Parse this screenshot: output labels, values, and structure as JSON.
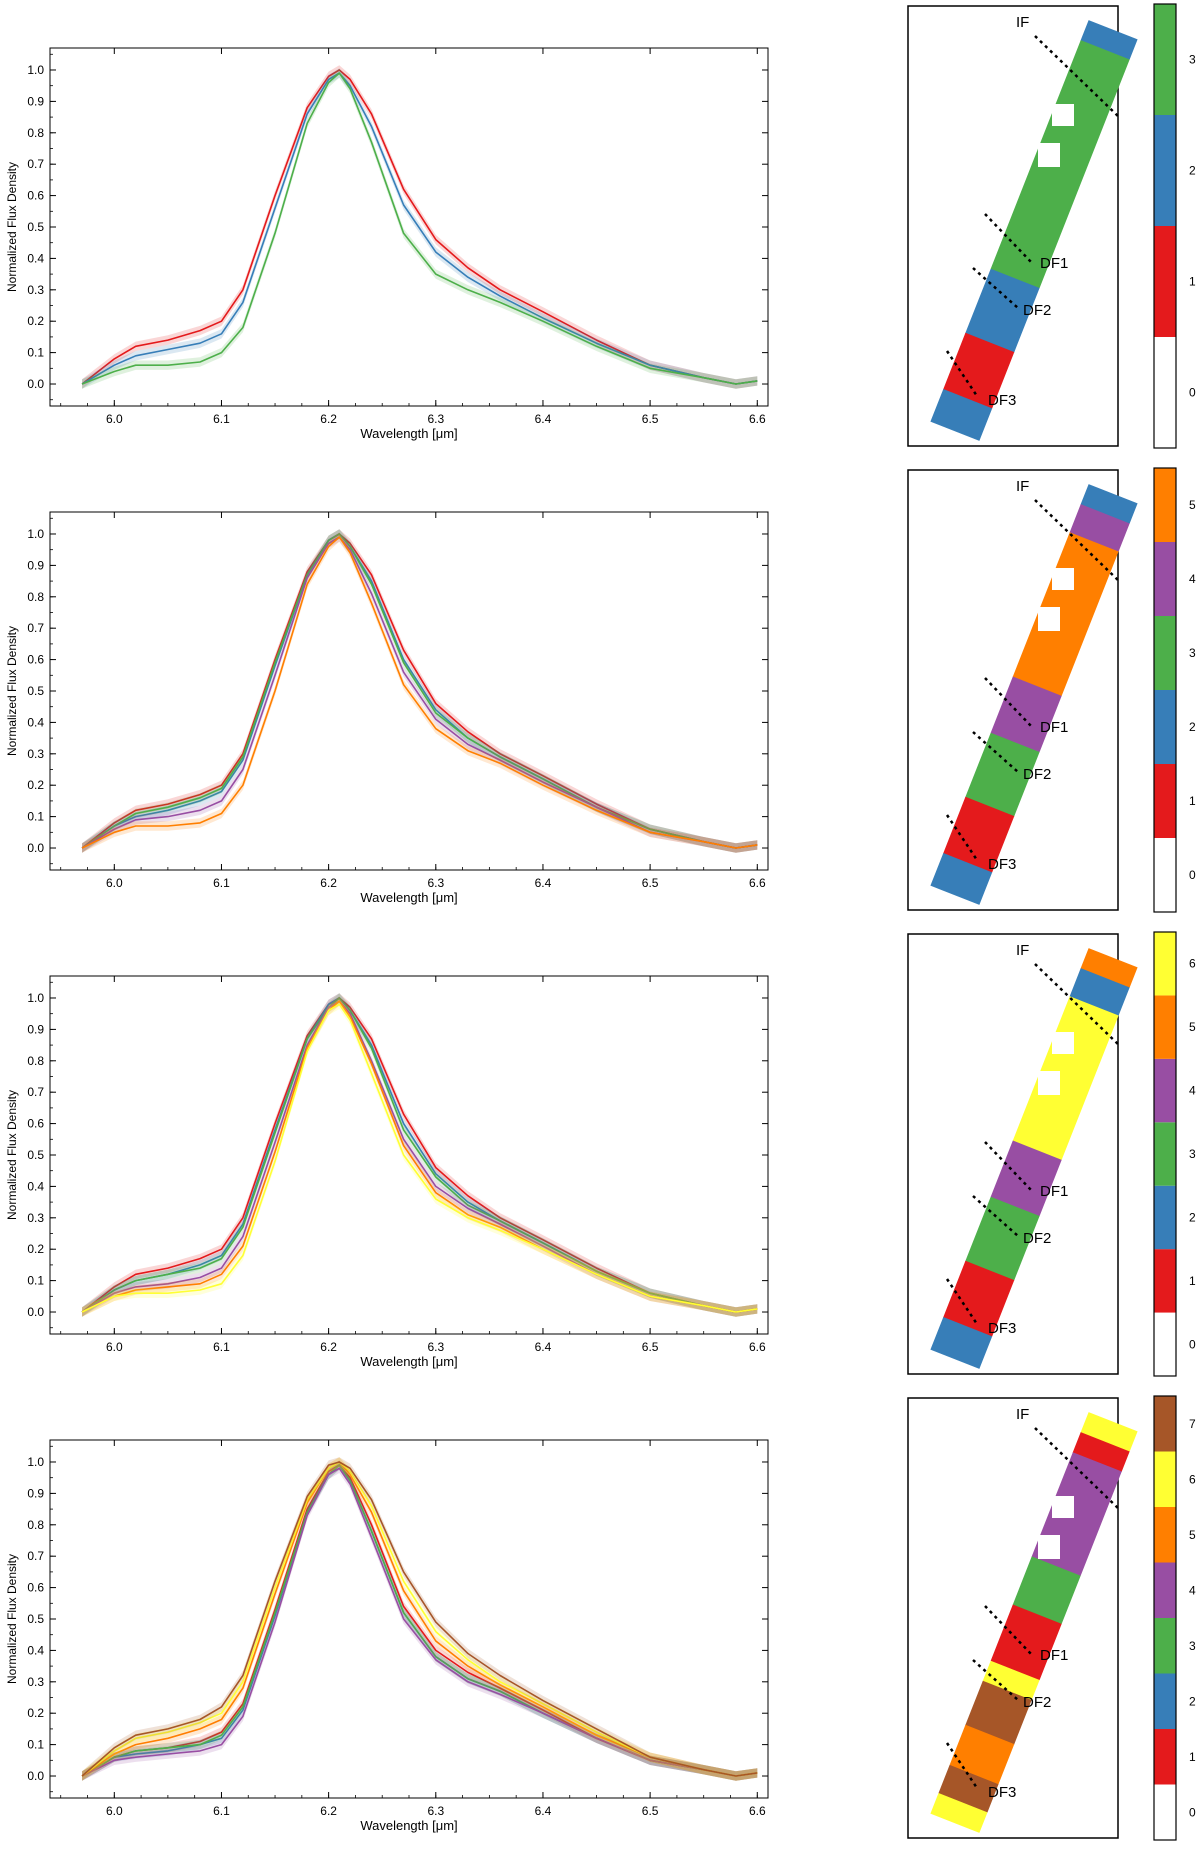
{
  "figure": {
    "spectrum_xlabel": "Wavelength [μm]",
    "spectrum_ylabel": "Normalized Flux Density",
    "map_labels": {
      "if": "IF",
      "df1": "DF1",
      "df2": "DF2",
      "df3": "DF3"
    }
  },
  "palette": {
    "0": "#ffffff",
    "1": "#e41a1c",
    "2": "#377eb8",
    "3": "#4daf4a",
    "4": "#984ea3",
    "5": "#ff7f00",
    "6": "#ffff33",
    "7": "#a65628"
  },
  "chart_data": [
    {
      "type": "line",
      "xlabel": "Wavelength [μm]",
      "ylabel": "Normalized Flux Density",
      "xlim": [
        5.94,
        6.61
      ],
      "ylim": [
        -0.07,
        1.07
      ],
      "xticks": [
        6.0,
        6.1,
        6.2,
        6.3,
        6.4,
        6.5,
        6.6
      ],
      "yticks": [
        0.0,
        0.1,
        0.2,
        0.3,
        0.4,
        0.5,
        0.6,
        0.7,
        0.8,
        0.9,
        1.0
      ],
      "x": [
        5.97,
        6.0,
        6.02,
        6.05,
        6.08,
        6.1,
        6.12,
        6.15,
        6.18,
        6.2,
        6.21,
        6.22,
        6.24,
        6.27,
        6.3,
        6.33,
        6.36,
        6.4,
        6.45,
        6.5,
        6.55,
        6.58,
        6.6
      ],
      "series": [
        {
          "cluster": "1",
          "values": [
            0.0,
            0.08,
            0.12,
            0.14,
            0.17,
            0.2,
            0.3,
            0.6,
            0.88,
            0.98,
            1.0,
            0.97,
            0.86,
            0.62,
            0.46,
            0.37,
            0.3,
            0.23,
            0.14,
            0.06,
            0.02,
            0.0,
            0.01
          ]
        },
        {
          "cluster": "2",
          "values": [
            0.0,
            0.06,
            0.09,
            0.11,
            0.13,
            0.16,
            0.26,
            0.56,
            0.86,
            0.97,
            0.99,
            0.95,
            0.82,
            0.57,
            0.42,
            0.34,
            0.28,
            0.21,
            0.13,
            0.06,
            0.02,
            0.0,
            0.01
          ]
        },
        {
          "cluster": "3",
          "values": [
            0.0,
            0.04,
            0.06,
            0.06,
            0.07,
            0.1,
            0.18,
            0.48,
            0.83,
            0.96,
            0.99,
            0.94,
            0.77,
            0.48,
            0.35,
            0.3,
            0.26,
            0.2,
            0.12,
            0.05,
            0.02,
            0.0,
            0.01
          ]
        }
      ],
      "colorbar_ticks": [
        "0",
        "1",
        "2",
        "3"
      ]
    },
    {
      "type": "line",
      "xlabel": "Wavelength [μm]",
      "ylabel": "Normalized Flux Density",
      "xlim": [
        5.94,
        6.61
      ],
      "ylim": [
        -0.07,
        1.07
      ],
      "xticks": [
        6.0,
        6.1,
        6.2,
        6.3,
        6.4,
        6.5,
        6.6
      ],
      "yticks": [
        0.0,
        0.1,
        0.2,
        0.3,
        0.4,
        0.5,
        0.6,
        0.7,
        0.8,
        0.9,
        1.0
      ],
      "x": [
        5.97,
        6.0,
        6.02,
        6.05,
        6.08,
        6.1,
        6.12,
        6.15,
        6.18,
        6.2,
        6.21,
        6.22,
        6.24,
        6.27,
        6.3,
        6.33,
        6.36,
        6.4,
        6.45,
        6.5,
        6.55,
        6.58,
        6.6
      ],
      "series": [
        {
          "cluster": "1",
          "values": [
            0.0,
            0.08,
            0.12,
            0.14,
            0.17,
            0.2,
            0.3,
            0.6,
            0.88,
            0.98,
            1.0,
            0.97,
            0.87,
            0.63,
            0.46,
            0.37,
            0.3,
            0.23,
            0.14,
            0.06,
            0.02,
            0.0,
            0.01
          ]
        },
        {
          "cluster": "2",
          "values": [
            0.0,
            0.07,
            0.1,
            0.12,
            0.15,
            0.18,
            0.28,
            0.58,
            0.87,
            0.98,
            1.0,
            0.96,
            0.85,
            0.6,
            0.44,
            0.35,
            0.29,
            0.22,
            0.13,
            0.06,
            0.02,
            0.0,
            0.01
          ]
        },
        {
          "cluster": "3",
          "values": [
            0.0,
            0.07,
            0.11,
            0.13,
            0.16,
            0.19,
            0.29,
            0.59,
            0.87,
            0.98,
            1.0,
            0.96,
            0.84,
            0.59,
            0.43,
            0.35,
            0.29,
            0.22,
            0.13,
            0.06,
            0.02,
            0.0,
            0.01
          ]
        },
        {
          "cluster": "4",
          "values": [
            0.0,
            0.06,
            0.09,
            0.1,
            0.12,
            0.15,
            0.25,
            0.55,
            0.86,
            0.97,
            0.99,
            0.95,
            0.81,
            0.56,
            0.41,
            0.33,
            0.28,
            0.21,
            0.13,
            0.05,
            0.02,
            0.0,
            0.01
          ]
        },
        {
          "cluster": "5",
          "values": [
            0.0,
            0.05,
            0.07,
            0.07,
            0.08,
            0.11,
            0.2,
            0.5,
            0.84,
            0.96,
            0.99,
            0.94,
            0.78,
            0.52,
            0.38,
            0.31,
            0.27,
            0.2,
            0.12,
            0.05,
            0.02,
            0.0,
            0.01
          ]
        }
      ],
      "colorbar_ticks": [
        "0",
        "1",
        "2",
        "3",
        "4",
        "5"
      ]
    },
    {
      "type": "line",
      "xlabel": "Wavelength [μm]",
      "ylabel": "Normalized Flux Density",
      "xlim": [
        5.94,
        6.61
      ],
      "ylim": [
        -0.07,
        1.07
      ],
      "xticks": [
        6.0,
        6.1,
        6.2,
        6.3,
        6.4,
        6.5,
        6.6
      ],
      "yticks": [
        0.0,
        0.1,
        0.2,
        0.3,
        0.4,
        0.5,
        0.6,
        0.7,
        0.8,
        0.9,
        1.0
      ],
      "x": [
        5.97,
        6.0,
        6.02,
        6.05,
        6.08,
        6.1,
        6.12,
        6.15,
        6.18,
        6.2,
        6.21,
        6.22,
        6.24,
        6.27,
        6.3,
        6.33,
        6.36,
        6.4,
        6.45,
        6.5,
        6.55,
        6.58,
        6.6
      ],
      "series": [
        {
          "cluster": "1",
          "values": [
            0.0,
            0.08,
            0.12,
            0.14,
            0.17,
            0.2,
            0.3,
            0.6,
            0.88,
            0.98,
            1.0,
            0.97,
            0.87,
            0.63,
            0.46,
            0.37,
            0.3,
            0.23,
            0.14,
            0.06,
            0.02,
            0.0,
            0.01
          ]
        },
        {
          "cluster": "2",
          "values": [
            0.0,
            0.07,
            0.1,
            0.12,
            0.15,
            0.18,
            0.28,
            0.58,
            0.87,
            0.98,
            1.0,
            0.96,
            0.85,
            0.6,
            0.44,
            0.35,
            0.29,
            0.22,
            0.13,
            0.06,
            0.02,
            0.0,
            0.01
          ]
        },
        {
          "cluster": "3",
          "values": [
            0.0,
            0.07,
            0.1,
            0.12,
            0.14,
            0.17,
            0.27,
            0.57,
            0.87,
            0.97,
            1.0,
            0.96,
            0.84,
            0.58,
            0.43,
            0.34,
            0.29,
            0.22,
            0.13,
            0.06,
            0.02,
            0.0,
            0.01
          ]
        },
        {
          "cluster": "4",
          "values": [
            0.0,
            0.06,
            0.08,
            0.09,
            0.11,
            0.14,
            0.24,
            0.54,
            0.85,
            0.97,
            0.99,
            0.95,
            0.8,
            0.55,
            0.4,
            0.33,
            0.28,
            0.21,
            0.12,
            0.05,
            0.02,
            0.0,
            0.01
          ]
        },
        {
          "cluster": "5",
          "values": [
            0.0,
            0.05,
            0.07,
            0.08,
            0.09,
            0.12,
            0.21,
            0.51,
            0.84,
            0.96,
            0.99,
            0.94,
            0.79,
            0.53,
            0.38,
            0.31,
            0.27,
            0.2,
            0.12,
            0.05,
            0.02,
            0.0,
            0.01
          ]
        },
        {
          "cluster": "6",
          "values": [
            0.0,
            0.05,
            0.06,
            0.06,
            0.07,
            0.09,
            0.18,
            0.48,
            0.83,
            0.96,
            0.98,
            0.93,
            0.76,
            0.5,
            0.36,
            0.3,
            0.26,
            0.2,
            0.12,
            0.05,
            0.02,
            0.0,
            0.01
          ]
        }
      ],
      "colorbar_ticks": [
        "0",
        "1",
        "2",
        "3",
        "4",
        "5",
        "6"
      ]
    },
    {
      "type": "line",
      "xlabel": "Wavelength [μm]",
      "ylabel": "Normalized Flux Density",
      "xlim": [
        5.94,
        6.61
      ],
      "ylim": [
        -0.07,
        1.07
      ],
      "xticks": [
        6.0,
        6.1,
        6.2,
        6.3,
        6.4,
        6.5,
        6.6
      ],
      "yticks": [
        0.0,
        0.1,
        0.2,
        0.3,
        0.4,
        0.5,
        0.6,
        0.7,
        0.8,
        0.9,
        1.0
      ],
      "x": [
        5.97,
        6.0,
        6.02,
        6.05,
        6.08,
        6.1,
        6.12,
        6.15,
        6.18,
        6.2,
        6.21,
        6.22,
        6.24,
        6.27,
        6.3,
        6.33,
        6.36,
        6.4,
        6.45,
        6.5,
        6.55,
        6.58,
        6.6
      ],
      "series": [
        {
          "cluster": "1",
          "values": [
            0.0,
            0.06,
            0.08,
            0.09,
            0.11,
            0.14,
            0.23,
            0.53,
            0.85,
            0.97,
            0.99,
            0.95,
            0.8,
            0.54,
            0.4,
            0.33,
            0.28,
            0.21,
            0.12,
            0.05,
            0.02,
            0.0,
            0.01
          ]
        },
        {
          "cluster": "2",
          "values": [
            0.0,
            0.06,
            0.07,
            0.08,
            0.1,
            0.12,
            0.21,
            0.51,
            0.84,
            0.96,
            0.99,
            0.94,
            0.78,
            0.52,
            0.38,
            0.31,
            0.27,
            0.2,
            0.12,
            0.05,
            0.02,
            0.0,
            0.01
          ]
        },
        {
          "cluster": "3",
          "values": [
            0.0,
            0.06,
            0.08,
            0.09,
            0.1,
            0.13,
            0.22,
            0.52,
            0.84,
            0.96,
            0.99,
            0.94,
            0.78,
            0.52,
            0.38,
            0.31,
            0.27,
            0.2,
            0.12,
            0.05,
            0.02,
            0.0,
            0.01
          ]
        },
        {
          "cluster": "4",
          "values": [
            0.0,
            0.05,
            0.06,
            0.07,
            0.08,
            0.1,
            0.19,
            0.49,
            0.83,
            0.96,
            0.98,
            0.93,
            0.76,
            0.5,
            0.37,
            0.3,
            0.26,
            0.2,
            0.12,
            0.05,
            0.02,
            0.0,
            0.01
          ]
        },
        {
          "cluster": "5",
          "values": [
            0.0,
            0.07,
            0.1,
            0.12,
            0.15,
            0.18,
            0.28,
            0.58,
            0.87,
            0.98,
            1.0,
            0.96,
            0.84,
            0.59,
            0.43,
            0.35,
            0.29,
            0.22,
            0.13,
            0.06,
            0.02,
            0.0,
            0.01
          ]
        },
        {
          "cluster": "6",
          "values": [
            0.0,
            0.08,
            0.12,
            0.14,
            0.17,
            0.2,
            0.3,
            0.6,
            0.88,
            0.98,
            1.0,
            0.97,
            0.86,
            0.62,
            0.46,
            0.37,
            0.3,
            0.23,
            0.14,
            0.06,
            0.02,
            0.0,
            0.01
          ]
        },
        {
          "cluster": "7",
          "values": [
            0.0,
            0.09,
            0.13,
            0.15,
            0.18,
            0.22,
            0.32,
            0.62,
            0.89,
            0.99,
            1.0,
            0.98,
            0.88,
            0.65,
            0.49,
            0.39,
            0.32,
            0.24,
            0.15,
            0.06,
            0.02,
            0.0,
            0.01
          ]
        }
      ],
      "colorbar_ticks": [
        "0",
        "1",
        "2",
        "3",
        "4",
        "5",
        "6",
        "7"
      ]
    }
  ],
  "maps": [
    {
      "segments": [
        {
          "cluster": "2",
          "from": 0.0,
          "to": 0.05
        },
        {
          "cluster": "3",
          "from": 0.05,
          "to": 0.62
        },
        {
          "cluster": "2",
          "from": 0.62,
          "to": 0.78
        },
        {
          "cluster": "1",
          "from": 0.78,
          "to": 0.92
        },
        {
          "cluster": "2",
          "from": 0.92,
          "to": 1.0
        }
      ]
    },
    {
      "segments": [
        {
          "cluster": "2",
          "from": 0.0,
          "to": 0.05
        },
        {
          "cluster": "4",
          "from": 0.05,
          "to": 0.12
        },
        {
          "cluster": "5",
          "from": 0.12,
          "to": 0.48
        },
        {
          "cluster": "4",
          "from": 0.48,
          "to": 0.62
        },
        {
          "cluster": "3",
          "from": 0.62,
          "to": 0.78
        },
        {
          "cluster": "1",
          "from": 0.78,
          "to": 0.92
        },
        {
          "cluster": "2",
          "from": 0.92,
          "to": 1.0
        }
      ]
    },
    {
      "segments": [
        {
          "cluster": "5",
          "from": 0.0,
          "to": 0.05
        },
        {
          "cluster": "2",
          "from": 0.05,
          "to": 0.12
        },
        {
          "cluster": "6",
          "from": 0.12,
          "to": 0.48
        },
        {
          "cluster": "4",
          "from": 0.48,
          "to": 0.62
        },
        {
          "cluster": "3",
          "from": 0.62,
          "to": 0.78
        },
        {
          "cluster": "1",
          "from": 0.78,
          "to": 0.92
        },
        {
          "cluster": "2",
          "from": 0.92,
          "to": 1.0
        }
      ]
    },
    {
      "segments": [
        {
          "cluster": "6",
          "from": 0.0,
          "to": 0.05
        },
        {
          "cluster": "1",
          "from": 0.05,
          "to": 0.1
        },
        {
          "cluster": "4",
          "from": 0.1,
          "to": 0.36
        },
        {
          "cluster": "3",
          "from": 0.36,
          "to": 0.48
        },
        {
          "cluster": "1",
          "from": 0.48,
          "to": 0.62
        },
        {
          "cluster": "6",
          "from": 0.62,
          "to": 0.67
        },
        {
          "cluster": "7",
          "from": 0.67,
          "to": 0.78
        },
        {
          "cluster": "5",
          "from": 0.78,
          "to": 0.88
        },
        {
          "cluster": "7",
          "from": 0.88,
          "to": 0.95
        },
        {
          "cluster": "6",
          "from": 0.95,
          "to": 1.0
        }
      ]
    }
  ]
}
